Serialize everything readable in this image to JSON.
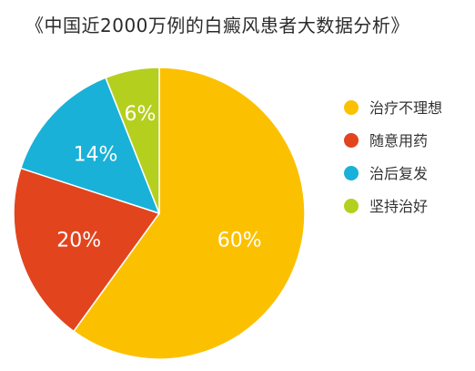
{
  "chart_data": {
    "type": "pie",
    "title": "《中国近2000万例的白癜风患者大数据分析》",
    "slices": [
      {
        "label": "治疗不理想",
        "value": 60,
        "display": "60%",
        "color": "#FBC100"
      },
      {
        "label": "随意用药",
        "value": 20,
        "display": "20%",
        "color": "#E2441E"
      },
      {
        "label": "治后复发",
        "value": 14,
        "display": "14%",
        "color": "#19B1D7"
      },
      {
        "label": "坚持治好",
        "value": 6,
        "display": "6%",
        "color": "#B5CF1E"
      }
    ],
    "legend_position": "right"
  }
}
